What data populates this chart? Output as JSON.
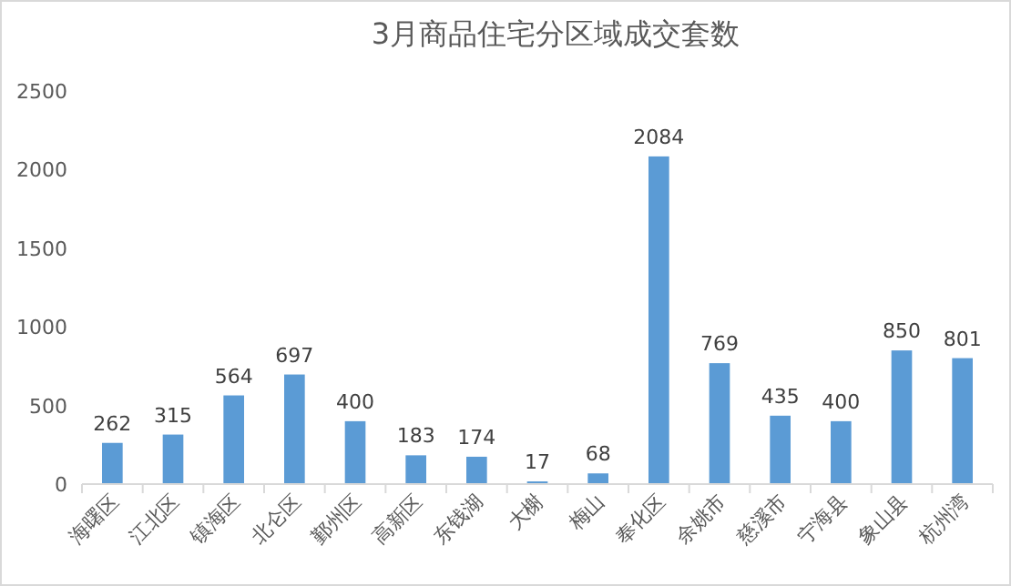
{
  "chart_data": {
    "type": "bar",
    "title": "3月商品住宅分区域成交套数",
    "categories": [
      "海曙区",
      "江北区",
      "镇海区",
      "北仑区",
      "鄞州区",
      "高新区",
      "东钱湖",
      "大榭",
      "梅山",
      "奉化区",
      "余姚市",
      "慈溪市",
      "宁海县",
      "象山县",
      "杭州湾"
    ],
    "values": [
      262,
      315,
      564,
      697,
      400,
      183,
      174,
      17,
      68,
      2084,
      769,
      435,
      400,
      850,
      801
    ],
    "color": "#5b9bd5",
    "ylim": [
      0,
      2500
    ],
    "yticks": [
      0,
      500,
      1000,
      1500,
      2000,
      2500
    ],
    "data_labels": true,
    "grid": false
  }
}
